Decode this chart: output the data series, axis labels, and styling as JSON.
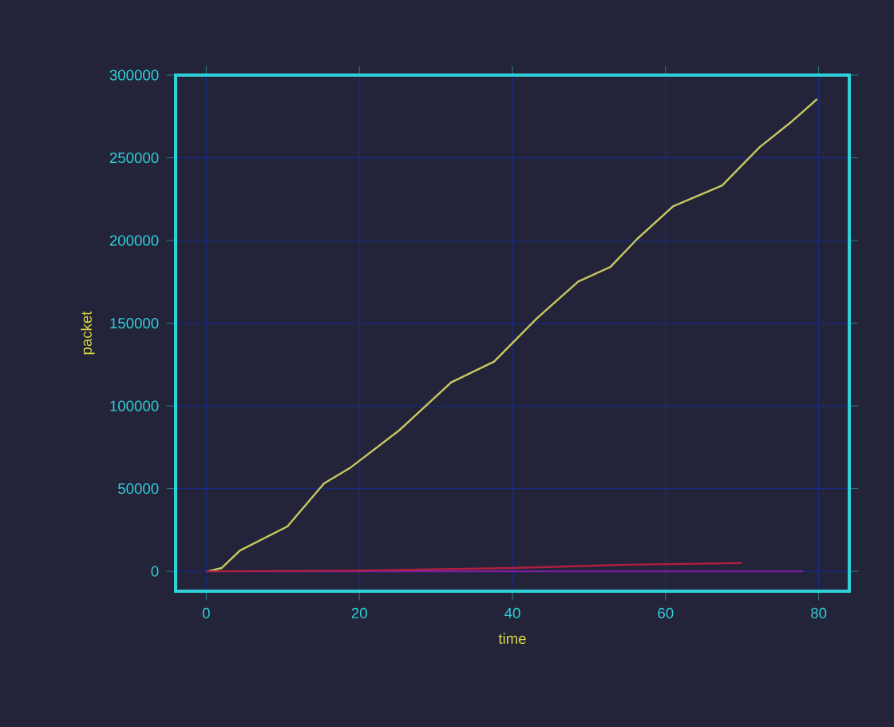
{
  "chart_data": {
    "type": "line",
    "xlabel": "time",
    "ylabel": "packet",
    "xlim": [
      -4,
      84
    ],
    "ylim": [
      -12000,
      300000
    ],
    "xticks": [
      0,
      20,
      40,
      60,
      80
    ],
    "yticks": [
      0,
      50000,
      100000,
      150000,
      200000,
      250000,
      300000
    ],
    "grid": true,
    "marker": "none",
    "line_style": "solid",
    "series": [
      {
        "color": "#c8c860",
        "x": [
          0.2,
          2,
          4.4,
          10.6,
          15.4,
          18.9,
          25.2,
          32,
          37.6,
          43.2,
          48.6,
          52.8,
          56.3,
          61,
          67.4,
          72.3,
          76.5,
          79.8
        ],
        "values": [
          0,
          2000,
          12600,
          27100,
          53200,
          62900,
          85200,
          114200,
          126800,
          153000,
          175200,
          184000,
          201000,
          220700,
          233300,
          256500,
          272000,
          285500
        ]
      },
      {
        "color": "#7a1fa0",
        "x": [
          0,
          78
        ],
        "values": [
          0,
          0
        ]
      },
      {
        "color": "#b02040",
        "x": [
          0,
          20,
          40,
          55,
          70
        ],
        "values": [
          0,
          500,
          2000,
          4000,
          5000
        ]
      }
    ]
  }
}
